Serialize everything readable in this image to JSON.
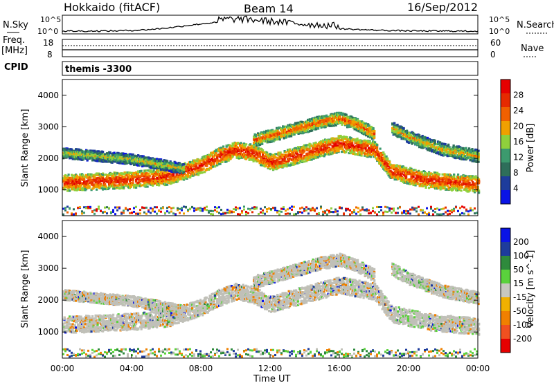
{
  "header": {
    "title": "Hokkaido (fitACF)",
    "beam": "Beam 14",
    "date": "16/Sep/2012"
  },
  "top_panels": {
    "nsky_label": "N.Sky",
    "nsearch_label": "N.Search",
    "nsky_ticks": [
      "10^5",
      "10^0"
    ],
    "nsky_right_ticks": [
      "10^5",
      "10^0"
    ],
    "freq_label_1": "Freq.",
    "freq_label_2": "[MHz]",
    "freq_ticks": [
      "18",
      "8"
    ],
    "nave_label": "Nave",
    "nave_ticks": [
      "60",
      "0"
    ],
    "cpid_label": "CPID",
    "cpid_text": "themis -3300"
  },
  "colors": {
    "power_scale": [
      "#0a14e6",
      "#1e3c9c",
      "#2e6e5a",
      "#3c9a6e",
      "#8fd03c",
      "#f0a000",
      "#f06000",
      "#e62a00",
      "#e60000"
    ],
    "velocity_scale": [
      "#e60000",
      "#f05020",
      "#f08000",
      "#f0b000",
      "#c8c8c0",
      "#5ad23c",
      "#2e8a3c",
      "#1e3c9c",
      "#0a14e6"
    ],
    "ground_scatter": "#c0c0b8"
  },
  "chart_data": [
    {
      "type": "heatmap",
      "title": "",
      "xlabel": "Time UT",
      "ylabel": "Slant Range [km]",
      "x_ticks": [
        "00:00",
        "04:00",
        "08:00",
        "12:00",
        "16:00",
        "20:00",
        "00:00"
      ],
      "y_ticks": [
        "1000",
        "2000",
        "3000",
        "4000"
      ],
      "ylim": [
        180,
        4500
      ],
      "colorbar_label": "Power [dB]",
      "colorbar_ticks": [
        "4",
        "8",
        "12",
        "16",
        "20",
        "24",
        "28"
      ],
      "colorbar_range": [
        0,
        30
      ],
      "bands": [
        {
          "t": [
            0,
            4,
            6,
            8,
            9,
            10,
            11,
            12,
            14,
            16,
            18,
            19,
            21,
            23,
            24
          ],
          "range": [
            1250,
            1350,
            1450,
            1800,
            2100,
            2300,
            2200,
            1900,
            2200,
            2500,
            2300,
            1600,
            1350,
            1250,
            1200
          ],
          "width": 400,
          "power": 28
        },
        {
          "t": [
            0,
            2,
            4,
            6,
            7
          ],
          "range": [
            2200,
            2100,
            2000,
            1800,
            1700
          ],
          "width": 250,
          "power": 18
        },
        {
          "t": [
            11,
            13,
            15,
            16,
            17,
            18
          ],
          "range": [
            2600,
            2900,
            3200,
            3300,
            3100,
            2800
          ],
          "width": 300,
          "power": 24
        },
        {
          "t": [
            19,
            20,
            21,
            22,
            23,
            24
          ],
          "range": [
            3000,
            2700,
            2500,
            2300,
            2200,
            2100
          ],
          "width": 300,
          "power": 20
        }
      ]
    },
    {
      "type": "heatmap",
      "title": "",
      "xlabel": "Time UT",
      "ylabel": "Slant Range [km]",
      "x_ticks": [
        "00:00",
        "04:00",
        "08:00",
        "12:00",
        "16:00",
        "20:00",
        "00:00"
      ],
      "y_ticks": [
        "1000",
        "2000",
        "3000",
        "4000"
      ],
      "ylim": [
        180,
        4500
      ],
      "colorbar_label": "Velocity [m s^-1]",
      "colorbar_ticks": [
        "200",
        "100",
        "50",
        "15",
        "-15",
        "-50",
        "-100",
        "-200"
      ],
      "colorbar_range": [
        -250,
        250
      ]
    }
  ]
}
